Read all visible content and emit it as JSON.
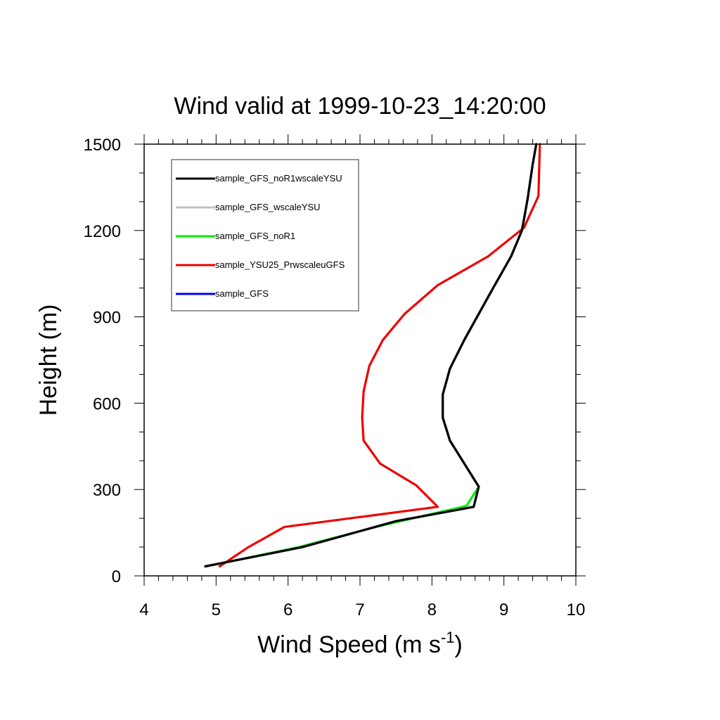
{
  "chart_data": {
    "type": "line",
    "title": "Wind valid at 1999-10-23_14:20:00",
    "xlabel": "Wind Speed (m s",
    "xlabel_sup": "-1",
    "xlabel_end": ")",
    "ylabel": "Height (m)",
    "xlim": [
      4,
      10
    ],
    "ylim": [
      0,
      1500
    ],
    "xticks": [
      4,
      5,
      6,
      7,
      8,
      9,
      10
    ],
    "yticks": [
      0,
      300,
      600,
      900,
      1200,
      1500
    ],
    "legend_position": "top-left",
    "grid": false,
    "series": [
      {
        "name": "sample_GFS_noR1wscaleYSU",
        "color": "#000000",
        "points": [
          [
            4.85,
            33
          ],
          [
            5.15,
            48
          ],
          [
            6.2,
            100
          ],
          [
            7.5,
            190
          ],
          [
            8.58,
            240
          ],
          [
            8.65,
            310
          ],
          [
            8.25,
            470
          ],
          [
            8.15,
            550
          ],
          [
            8.15,
            630
          ],
          [
            8.25,
            720
          ],
          [
            8.45,
            820
          ],
          [
            8.85,
            1000
          ],
          [
            9.1,
            1110
          ],
          [
            9.25,
            1200
          ],
          [
            9.33,
            1310
          ],
          [
            9.4,
            1430
          ],
          [
            9.45,
            1500
          ]
        ]
      },
      {
        "name": "sample_GFS_wscaleYSU",
        "color": "#c0c0c0",
        "points": [
          [
            4.85,
            33
          ],
          [
            5.15,
            48
          ],
          [
            6.2,
            100
          ],
          [
            7.5,
            190
          ],
          [
            8.58,
            240
          ],
          [
            8.65,
            310
          ],
          [
            8.25,
            470
          ],
          [
            8.15,
            550
          ],
          [
            8.15,
            630
          ],
          [
            8.25,
            720
          ],
          [
            8.45,
            820
          ],
          [
            8.85,
            1000
          ],
          [
            9.1,
            1110
          ],
          [
            9.25,
            1200
          ],
          [
            9.33,
            1310
          ],
          [
            9.4,
            1430
          ],
          [
            9.45,
            1500
          ]
        ]
      },
      {
        "name": "sample_GFS_noR1",
        "color": "#00ee00",
        "points": [
          [
            4.85,
            33
          ],
          [
            5.15,
            48
          ],
          [
            6.15,
            100
          ],
          [
            7.3,
            175
          ],
          [
            8.48,
            243
          ],
          [
            8.65,
            310
          ],
          [
            8.25,
            470
          ],
          [
            8.15,
            550
          ],
          [
            8.15,
            630
          ],
          [
            8.25,
            720
          ],
          [
            8.45,
            820
          ],
          [
            8.85,
            1000
          ],
          [
            9.1,
            1110
          ],
          [
            9.25,
            1200
          ],
          [
            9.33,
            1310
          ],
          [
            9.4,
            1430
          ],
          [
            9.45,
            1500
          ]
        ]
      },
      {
        "name": "sample_YSU25_PrwscaleuGFS",
        "color": "#ee0000",
        "points": [
          [
            5.05,
            33
          ],
          [
            5.45,
            100
          ],
          [
            5.95,
            170
          ],
          [
            8.08,
            240
          ],
          [
            7.78,
            315
          ],
          [
            7.28,
            390
          ],
          [
            7.05,
            470
          ],
          [
            7.03,
            550
          ],
          [
            7.05,
            640
          ],
          [
            7.13,
            730
          ],
          [
            7.32,
            820
          ],
          [
            7.62,
            910
          ],
          [
            8.08,
            1010
          ],
          [
            8.78,
            1110
          ],
          [
            9.28,
            1210
          ],
          [
            9.48,
            1320
          ],
          [
            9.5,
            1500
          ]
        ]
      },
      {
        "name": "sample_GFS",
        "color": "#0000ee",
        "points": [
          [
            4.85,
            33
          ],
          [
            5.15,
            48
          ],
          [
            6.2,
            100
          ],
          [
            7.5,
            190
          ],
          [
            8.58,
            240
          ],
          [
            8.65,
            310
          ],
          [
            8.25,
            470
          ],
          [
            8.15,
            550
          ],
          [
            8.15,
            630
          ],
          [
            8.25,
            720
          ],
          [
            8.45,
            820
          ],
          [
            8.85,
            1000
          ],
          [
            9.1,
            1110
          ],
          [
            9.25,
            1200
          ],
          [
            9.33,
            1310
          ],
          [
            9.4,
            1430
          ],
          [
            9.45,
            1500
          ]
        ]
      }
    ],
    "draw_order": [
      4,
      3,
      2,
      1,
      0
    ]
  }
}
